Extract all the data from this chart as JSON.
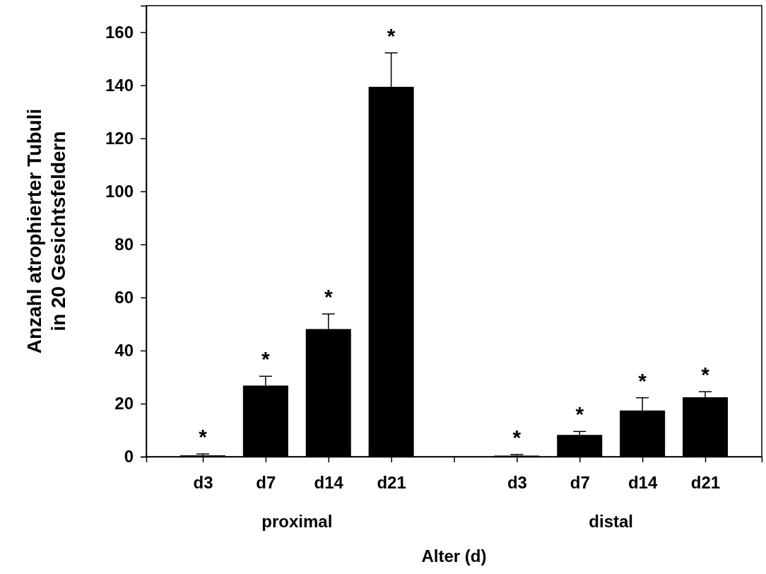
{
  "chart_data": {
    "type": "bar",
    "categories": [
      "d3",
      "d7",
      "d14",
      "d21",
      null,
      "d3",
      "d7",
      "d14",
      "d21"
    ],
    "values": [
      0.5,
      26.8,
      48.1,
      139.4,
      null,
      0.4,
      8.2,
      17.4,
      22.4
    ],
    "errors": [
      [
        0.5,
        1.0
      ],
      [
        26.8,
        30.3
      ],
      [
        48.1,
        53.8
      ],
      [
        139.4,
        152.2
      ],
      null,
      [
        0.4,
        0.8
      ],
      [
        8.2,
        9.5
      ],
      [
        17.4,
        22.2
      ],
      [
        22.4,
        24.5
      ]
    ],
    "color": "#000000",
    "xlabel": "Alter (d)",
    "ylabel": "Anzahl atrophierter Tubuli\nin 20 Gesichtsfeldern",
    "ylim": [
      0,
      170
    ],
    "yticks": [
      0,
      20,
      40,
      60,
      80,
      100,
      120,
      140,
      160
    ],
    "annotations": [
      "*",
      "*",
      "*",
      "*",
      "*",
      "*",
      "*",
      "*",
      "proximal",
      "distal"
    ]
  }
}
